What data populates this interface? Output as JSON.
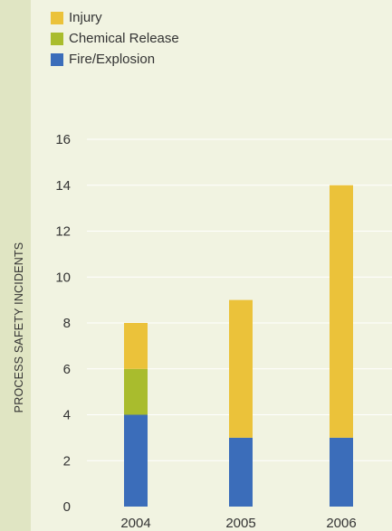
{
  "chart_data": {
    "type": "bar",
    "stacked": true,
    "categories": [
      "2004",
      "2005",
      "2006"
    ],
    "series": [
      {
        "name": "Fire/Explosion",
        "values": [
          4,
          3,
          3
        ],
        "color": "#3b6dba"
      },
      {
        "name": "Chemical Release",
        "values": [
          2,
          0,
          0
        ],
        "color": "#a9bc2d"
      },
      {
        "name": "Injury",
        "values": [
          2,
          6,
          11
        ],
        "color": "#ebc23a"
      }
    ],
    "legend_order": [
      "Injury",
      "Chemical Release",
      "Fire/Explosion"
    ],
    "legend_position": "top-left",
    "ylabel": "PROCESS SAFETY INCIDENTS",
    "xlabel": "",
    "ylim": [
      0,
      16
    ],
    "yticks": [
      "0",
      "2",
      "4",
      "6",
      "8",
      "10",
      "12",
      "14",
      "16"
    ],
    "grid": true
  },
  "colors": {
    "background": "#f1f3e1",
    "side_band": "#e0e5c3",
    "gridline": "#ffffff",
    "text": "#333333"
  }
}
